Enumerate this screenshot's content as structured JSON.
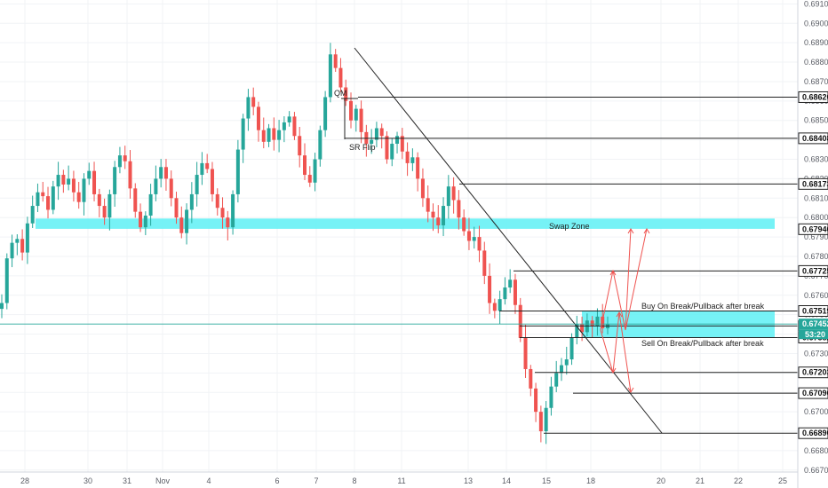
{
  "chart_data": {
    "type": "candlestick",
    "x_tick_labels": [
      "28",
      "30",
      "31",
      "Nov",
      "4",
      "6",
      "7",
      "8",
      "11",
      "13",
      "14",
      "15",
      "18",
      "20",
      "21",
      "22",
      "25"
    ],
    "y_axis_ticks": [
      0.691,
      0.69,
      0.689,
      0.688,
      0.687,
      0.686,
      0.685,
      0.684,
      0.683,
      0.682,
      0.681,
      0.68,
      0.679,
      0.678,
      0.677,
      0.676,
      0.675,
      0.674,
      0.673,
      0.672,
      0.671,
      0.67,
      0.669,
      0.668,
      0.667
    ],
    "y_tick_labels": [
      "0.69100",
      "0.69000",
      "0.68900",
      "0.68800",
      "0.68700",
      "0.68600",
      "0.68500",
      "0.68400",
      "0.68300",
      "0.68200",
      "0.68100",
      "0.68000",
      "0.67900",
      "0.67800",
      "0.67700",
      "0.67600",
      "0.67500",
      "0.67400",
      "0.67300",
      "0.67200",
      "0.67100",
      "0.67000",
      "0.66900",
      "0.66800",
      "0.66700"
    ],
    "ylim": [
      0.6669,
      0.6912
    ],
    "price_levels": [
      {
        "value": 0.6862,
        "label": "0.68620"
      },
      {
        "value": 0.68408,
        "label": "0.68408"
      },
      {
        "value": 0.68173,
        "label": "0.68173"
      },
      {
        "value": 0.6794,
        "label": "0.67940"
      },
      {
        "value": 0.67725,
        "label": "0.67725"
      },
      {
        "value": 0.67519,
        "label": "0.67519"
      },
      {
        "value": 0.67442,
        "label": "0.67442"
      },
      {
        "value": 0.67382,
        "label": "0.67382"
      },
      {
        "value": 0.67203,
        "label": "0.67203"
      },
      {
        "value": 0.67096,
        "label": "0.67096"
      },
      {
        "value": 0.6689,
        "label": "0.66890"
      }
    ],
    "current_price": {
      "value": 0.67452,
      "label": "0.67452"
    },
    "countdown": "53:20",
    "zones": [
      {
        "name": "swap-zone",
        "label": "Swap Zone",
        "top": 0.67995,
        "bottom": 0.67942
      },
      {
        "name": "break-zone",
        "top": 0.67519,
        "bottom": 0.67382
      }
    ],
    "annotations": {
      "qm": "QM",
      "sr_flip": "SR Flip",
      "buy_text": "Buy On Break/Pullback after break",
      "sell_text": "Sell On Break/Pullback after break"
    },
    "colors": {
      "up": "#26a69a",
      "down": "#ef5350",
      "zone": "#5ef0f5",
      "projection": "#ef5350",
      "line": "#222222",
      "current_price": "#26a69a"
    },
    "price_path": [
      0.6756,
      0.6779,
      0.6787,
      0.6789,
      0.6782,
      0.6797,
      0.6806,
      0.6813,
      0.6811,
      0.6804,
      0.6816,
      0.6822,
      0.6817,
      0.682,
      0.6813,
      0.6808,
      0.682,
      0.6824,
      0.6812,
      0.6806,
      0.68,
      0.6812,
      0.6826,
      0.6832,
      0.6829,
      0.6815,
      0.6803,
      0.6795,
      0.6801,
      0.6812,
      0.682,
      0.6826,
      0.682,
      0.681,
      0.68,
      0.6792,
      0.6804,
      0.6812,
      0.6822,
      0.6828,
      0.6825,
      0.6812,
      0.6805,
      0.68,
      0.6795,
      0.6812,
      0.6835,
      0.6851,
      0.6862,
      0.6857,
      0.6845,
      0.6839,
      0.6846,
      0.684,
      0.6845,
      0.6849,
      0.6852,
      0.6842,
      0.6832,
      0.6822,
      0.6818,
      0.683,
      0.6845,
      0.6862,
      0.6884,
      0.6877,
      0.6867,
      0.686,
      0.685,
      0.6856,
      0.6844,
      0.6838,
      0.684,
      0.6846,
      0.6842,
      0.683,
      0.6838,
      0.6842,
      0.6834,
      0.6828,
      0.6831,
      0.682,
      0.681,
      0.6803,
      0.68,
      0.6796,
      0.6806,
      0.6816,
      0.6809,
      0.68,
      0.6793,
      0.6788,
      0.679,
      0.6783,
      0.677,
      0.6756,
      0.6752,
      0.6758,
      0.6764,
      0.6768,
      0.6755,
      0.6738,
      0.6722,
      0.6712,
      0.67,
      0.669,
      0.6702,
      0.6713,
      0.672,
      0.6724,
      0.6727,
      0.6738,
      0.6745,
      0.6741,
      0.6747,
      0.6744,
      0.6749,
      0.6743,
      0.6745
    ]
  }
}
